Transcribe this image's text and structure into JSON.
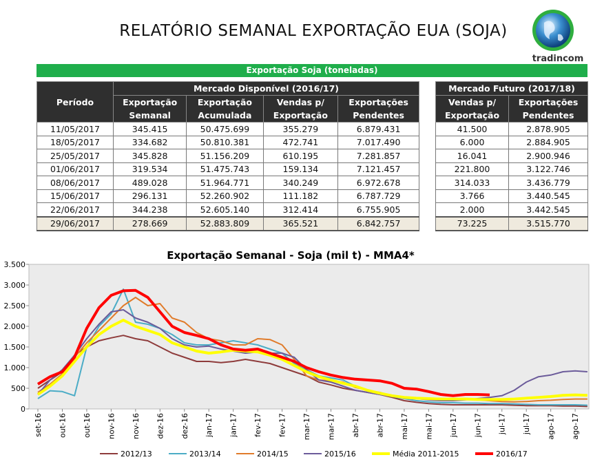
{
  "header": {
    "title": "RELATÓRIO SEMANAL EXPORTAÇÃO EUA (SOJA)",
    "logo": "tradincom"
  },
  "table": {
    "caption": "Exportação Soja (toneladas)",
    "period_header": "Período",
    "left_group": "Mercado Disponível (2016/17)",
    "left_columns": [
      "Exportação Semanal",
      "Exportação Acumulada",
      "Vendas p/ Exportação",
      "Exportações Pendentes"
    ],
    "right_group": "Mercado Futuro (2017/18)",
    "right_columns": [
      "Vendas p/ Exportação",
      "Exportações Pendentes"
    ],
    "rows": [
      [
        "11/05/2017",
        "345.415",
        "50.475.699",
        "355.279",
        "6.879.431",
        "41.500",
        "2.878.905"
      ],
      [
        "18/05/2017",
        "334.682",
        "50.810.381",
        "472.741",
        "7.017.490",
        "6.000",
        "2.884.905"
      ],
      [
        "25/05/2017",
        "345.828",
        "51.156.209",
        "610.195",
        "7.281.857",
        "16.041",
        "2.900.946"
      ],
      [
        "01/06/2017",
        "319.534",
        "51.475.743",
        "159.134",
        "7.121.457",
        "221.800",
        "3.122.746"
      ],
      [
        "08/06/2017",
        "489.028",
        "51.964.771",
        "340.249",
        "6.972.678",
        "314.033",
        "3.436.779"
      ],
      [
        "15/06/2017",
        "296.131",
        "52.260.902",
        "111.182",
        "6.787.729",
        "3.766",
        "3.440.545"
      ],
      [
        "22/06/2017",
        "344.238",
        "52.605.140",
        "312.414",
        "6.755.905",
        "2.000",
        "3.442.545"
      ],
      [
        "29/06/2017",
        "278.669",
        "52.883.809",
        "365.521",
        "6.842.757",
        "73.225",
        "3.515.770"
      ]
    ]
  },
  "chart_data": {
    "type": "line",
    "title": "Exportação Semanal - Soja (mil t) - MMA4*",
    "categories": [
      "set-16",
      null,
      "out-16",
      null,
      "out-16",
      null,
      "nov-16",
      null,
      "nov-16",
      null,
      "dez-16",
      null,
      "dez-16",
      null,
      "jan-17",
      null,
      "jan-17",
      null,
      "fev-17",
      null,
      "fev-17",
      null,
      "mar-17",
      null,
      "mar-17",
      null,
      "abr-17",
      null,
      "abr-17",
      null,
      "mai-17",
      null,
      "mai-17",
      null,
      "jun-17",
      null,
      "jun-17",
      null,
      "jul-17",
      null,
      "jul-17",
      null,
      "ago-17",
      null,
      "ago-17",
      null
    ],
    "ylim": [
      0,
      3500
    ],
    "yticks": [
      0,
      {
        "value": 500,
        "label": "500"
      },
      {
        "value": 1000,
        "label": "1.000"
      },
      {
        "value": 1500,
        "label": "1.500"
      },
      {
        "value": 2000,
        "label": "2.000"
      },
      {
        "value": 2500,
        "label": "2.500"
      },
      {
        "value": 3000,
        "label": "3.000"
      },
      {
        "value": 3500,
        "label": "3.500"
      }
    ],
    "grid": false,
    "legend": "bottom",
    "series": [
      {
        "name": "2012/13",
        "color": "#8e3b3b",
        "width": 2,
        "values": [
          500,
          700,
          900,
          1300,
          1500,
          1650,
          1720,
          1780,
          1700,
          1650,
          1500,
          1350,
          1250,
          1150,
          1150,
          1120,
          1150,
          1200,
          1150,
          1100,
          1000,
          900,
          800,
          650,
          580,
          500,
          450,
          400,
          350,
          280,
          200,
          160,
          130,
          110,
          100,
          100,
          100,
          100,
          100,
          90,
          80,
          80,
          80,
          70,
          70,
          60
        ]
      },
      {
        "name": "2013/14",
        "color": "#4bacc6",
        "width": 2,
        "values": [
          250,
          440,
          420,
          320,
          1500,
          2000,
          2300,
          2900,
          2100,
          2050,
          1950,
          1800,
          1600,
          1550,
          1550,
          1600,
          1650,
          1600,
          1550,
          1450,
          1350,
          1100,
          950,
          800,
          750,
          700,
          550,
          450,
          380,
          300,
          250,
          200,
          170,
          150,
          150,
          140,
          140,
          130,
          130,
          120,
          110,
          100,
          100,
          100,
          100,
          90
        ]
      },
      {
        "name": "2014/15",
        "color": "#e07b2a",
        "width": 2,
        "values": [
          400,
          600,
          850,
          1250,
          1600,
          1900,
          2200,
          2500,
          2700,
          2500,
          2550,
          2200,
          2100,
          1850,
          1700,
          1650,
          1550,
          1550,
          1700,
          1680,
          1550,
          1200,
          800,
          700,
          680,
          650,
          520,
          450,
          400,
          320,
          260,
          260,
          250,
          250,
          240,
          230,
          220,
          200,
          180,
          170,
          180,
          200,
          210,
          230,
          240,
          240
        ]
      },
      {
        "name": "2015/16",
        "color": "#6b5b9a",
        "width": 2,
        "values": [
          350,
          700,
          950,
          1300,
          1700,
          2050,
          2350,
          2400,
          2200,
          2100,
          1950,
          1700,
          1550,
          1500,
          1520,
          1450,
          1400,
          1350,
          1380,
          1350,
          1350,
          1250,
          950,
          700,
          650,
          550,
          450,
          400,
          350,
          300,
          280,
          250,
          220,
          200,
          200,
          220,
          250,
          280,
          320,
          450,
          650,
          780,
          820,
          900,
          920,
          900
        ]
      },
      {
        "name": "Média 2011-2015",
        "color": "#ffff00",
        "width": 4,
        "values": [
          350,
          550,
          800,
          1150,
          1500,
          1800,
          2000,
          2150,
          2000,
          1900,
          1800,
          1600,
          1500,
          1400,
          1350,
          1380,
          1420,
          1400,
          1380,
          1300,
          1200,
          1050,
          900,
          780,
          700,
          620,
          550,
          450,
          380,
          320,
          280,
          260,
          250,
          240,
          240,
          240,
          230,
          230,
          230,
          240,
          260,
          280,
          300,
          330,
          340,
          330
        ]
      },
      {
        "name": "2016/17",
        "color": "#ff0000",
        "width": 4,
        "values": [
          600,
          780,
          900,
          1250,
          1950,
          2450,
          2750,
          2860,
          2870,
          2700,
          2350,
          2000,
          1850,
          1780,
          1700,
          1550,
          1450,
          1420,
          1450,
          1350,
          1250,
          1150,
          1000,
          900,
          820,
          760,
          720,
          700,
          680,
          620,
          500,
          480,
          420,
          350,
          320,
          350,
          350,
          340,
          null,
          null,
          null,
          null,
          null,
          null,
          null,
          null
        ]
      }
    ]
  }
}
